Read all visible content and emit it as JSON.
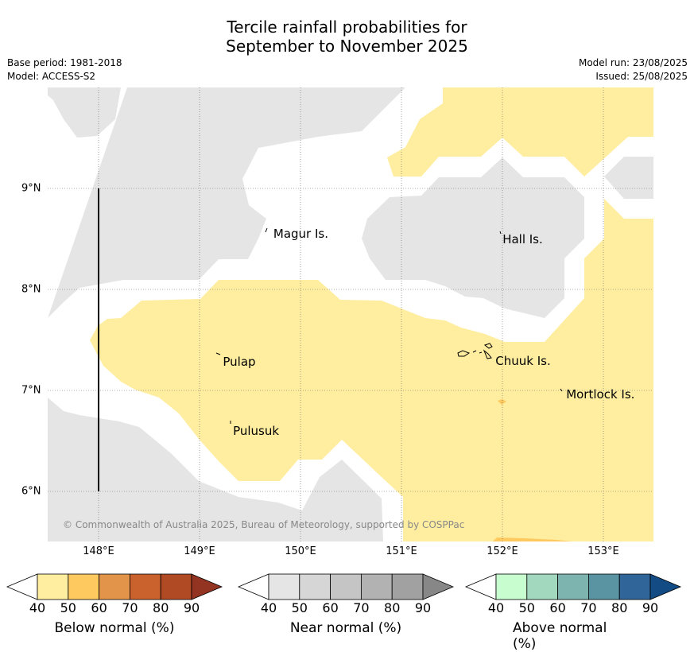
{
  "title": [
    "Tercile rainfall probabilities for",
    "September to November 2025"
  ],
  "meta_left": [
    "Base period: 1981-2018",
    "Model: ACCESS-S2"
  ],
  "meta_right": [
    "Model run: 23/08/2025",
    "Issued: 25/08/2025"
  ],
  "copyright": "© Commonwealth of Australia 2025, Bureau of Meteorology, supported by COSPPac",
  "x_axis": {
    "min": 147.5,
    "max": 153.5,
    "ticks": [
      {
        "v": 148,
        "label": "148°E"
      },
      {
        "v": 149,
        "label": "149°E"
      },
      {
        "v": 150,
        "label": "150°E"
      },
      {
        "v": 151,
        "label": "151°E"
      },
      {
        "v": 152,
        "label": "152°E"
      },
      {
        "v": 153,
        "label": "153°E"
      }
    ]
  },
  "y_axis": {
    "min": 5.5,
    "max": 9.95,
    "ticks": [
      {
        "v": 9,
        "label": "9°N"
      },
      {
        "v": 8,
        "label": "8°N"
      },
      {
        "v": 7,
        "label": "7°N"
      },
      {
        "v": 6,
        "label": "6°N"
      }
    ]
  },
  "places": [
    {
      "name": "Magur Is.",
      "lon": 149.7,
      "lat": 8.55
    },
    {
      "name": "Hall Is.",
      "lon": 151.97,
      "lat": 8.5
    },
    {
      "name": "Pulap",
      "lon": 149.2,
      "lat": 7.28
    },
    {
      "name": "Chuuk Is.",
      "lon": 151.9,
      "lat": 7.29
    },
    {
      "name": "Pulusuk",
      "lon": 149.3,
      "lat": 6.6
    },
    {
      "name": "Mortlock Is.",
      "lon": 152.6,
      "lat": 6.96
    }
  ],
  "colorbars": [
    {
      "title": "Below normal (%)",
      "ticks": [
        "40",
        "50",
        "60",
        "70",
        "80",
        "90"
      ],
      "colors": [
        "#ffeda0",
        "#fec95f",
        "#e2954a",
        "#ca622e",
        "#af4a25",
        "#933321"
      ]
    },
    {
      "title": "Near normal (%)",
      "ticks": [
        "40",
        "50",
        "60",
        "70",
        "80",
        "90"
      ],
      "colors": [
        "#e5e5e5",
        "#d6d6d6",
        "#c5c5c5",
        "#b2b2b2",
        "#a1a1a1",
        "#878787"
      ]
    },
    {
      "title": "Above normal (%)",
      "ticks": [
        "40",
        "50",
        "60",
        "70",
        "80",
        "90"
      ],
      "colors": [
        "#c8fdd0",
        "#a2d8be",
        "#7eb4b0",
        "#5a93a2",
        "#30659a",
        "#134b84"
      ]
    }
  ],
  "colors": {
    "below_40_50": "#ffeda0",
    "near_40_50": "#e5e5e5",
    "below_50_60": "#fec95f"
  }
}
